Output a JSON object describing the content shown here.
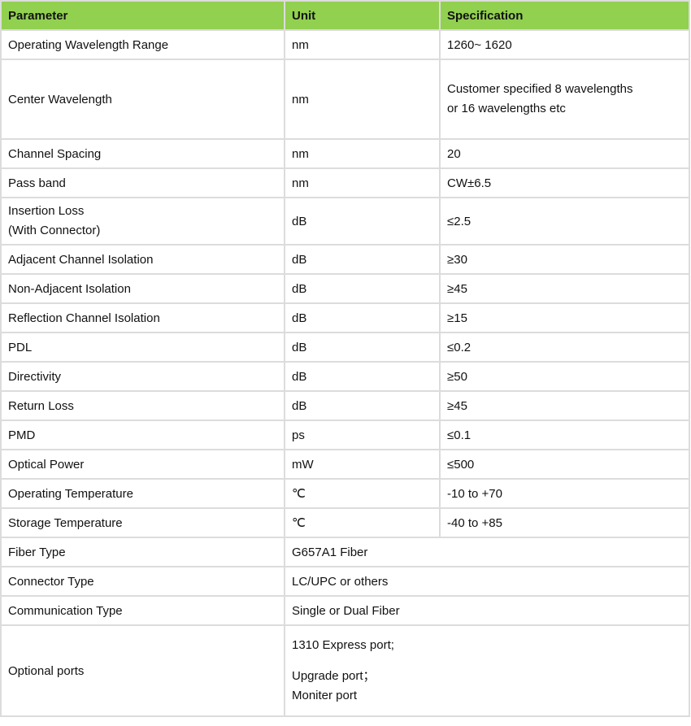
{
  "header": {
    "parameter": "Parameter",
    "unit": "Unit",
    "specification": "Specification"
  },
  "colors": {
    "header_bg": "#92d050",
    "grid": "#dcdcdc"
  },
  "rows": [
    {
      "parameter": "Operating Wavelength Range",
      "unit": "nm",
      "spec": "1260~ 1620"
    },
    {
      "parameter": "Center Wavelength",
      "unit": "nm",
      "spec_lines": [
        "Customer specified 8 wavelengths",
        "or 16 wavelengths etc"
      ]
    },
    {
      "parameter": "Channel Spacing",
      "unit": "nm",
      "spec": "20"
    },
    {
      "parameter": "Pass band",
      "unit": "nm",
      "spec": "CW±6.5"
    },
    {
      "parameter_lines": [
        "Insertion Loss",
        "(With Connector)"
      ],
      "unit": "dB",
      "spec": "≤2.5"
    },
    {
      "parameter": "Adjacent Channel Isolation",
      "unit": "dB",
      "spec": "≥30"
    },
    {
      "parameter": "Non-Adjacent Isolation",
      "unit": "dB",
      "spec": "≥45"
    },
    {
      "parameter": "Reflection Channel Isolation",
      "unit": "dB",
      "spec": "≥15"
    },
    {
      "parameter": "PDL",
      "unit": "dB",
      "spec": "≤0.2"
    },
    {
      "parameter": "Directivity",
      "unit": "dB",
      "spec": "≥50"
    },
    {
      "parameter": "Return Loss",
      "unit": "dB",
      "spec": "≥45"
    },
    {
      "parameter": "PMD",
      "unit": "ps",
      "spec": "≤0.1"
    },
    {
      "parameter": "Optical Power",
      "unit": "mW",
      "spec": "≤500"
    },
    {
      "parameter": "Operating Temperature",
      "unit": "℃",
      "spec": "-10 to +70"
    },
    {
      "parameter": "Storage Temperature",
      "unit": "℃",
      "spec": "-40 to +85"
    },
    {
      "parameter": "Fiber Type",
      "merged": "G657A1 Fiber"
    },
    {
      "parameter": "Connector Type",
      "merged": "LC/UPC or others"
    },
    {
      "parameter": "Communication Type",
      "merged": "Single or Dual Fiber"
    },
    {
      "parameter": "Optional ports",
      "merged_lines": [
        "1310 Express port;",
        "Upgrade port；",
        "Moniter port"
      ]
    }
  ]
}
